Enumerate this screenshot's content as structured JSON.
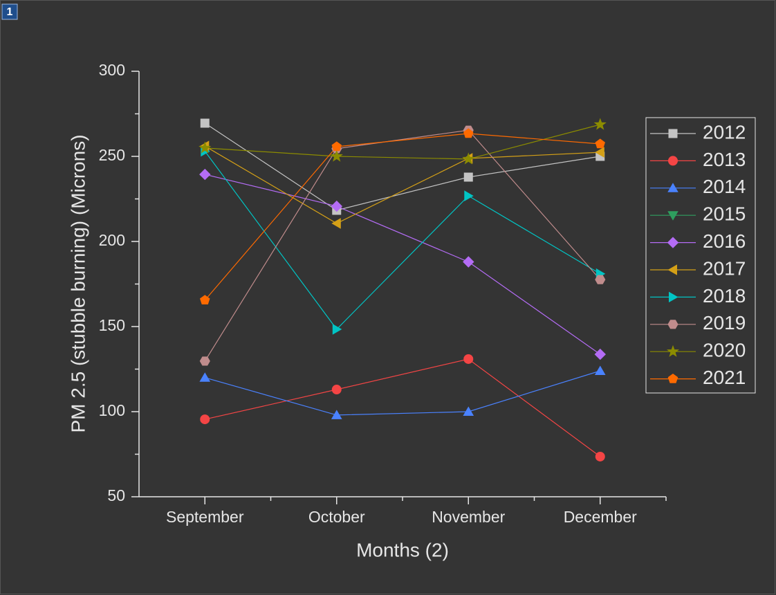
{
  "window_index": "1",
  "chart_data": {
    "type": "line",
    "xlabel": "Months (2)",
    "ylabel": "PM 2.5 (stubble burning) (Microns)",
    "categories": [
      "September",
      "October",
      "November",
      "December"
    ],
    "ylim": [
      50,
      300
    ],
    "yticks": [
      50,
      100,
      150,
      200,
      250,
      300
    ],
    "yminor_ticks": [
      75,
      125,
      175,
      225,
      275
    ],
    "legend": "right",
    "series": [
      {
        "name": "2012",
        "color": "#c4c4c4",
        "marker": "square",
        "values": [
          269.5,
          218.3,
          237.8,
          250
        ]
      },
      {
        "name": "2013",
        "color": "#f44545",
        "marker": "circle",
        "values": [
          95.5,
          113,
          130.9,
          73.6
        ]
      },
      {
        "name": "2014",
        "color": "#4a82ff",
        "marker": "triangle-up",
        "values": [
          120,
          98,
          100,
          124
        ]
      },
      {
        "name": "2015",
        "color": "#2e9e5e",
        "marker": "triangle-down",
        "values": [
          null,
          null,
          null,
          null
        ]
      },
      {
        "name": "2016",
        "color": "#b46cf5",
        "marker": "diamond",
        "values": [
          239.4,
          220.7,
          188,
          133.7
        ]
      },
      {
        "name": "2017",
        "color": "#d4a017",
        "marker": "triangle-left",
        "values": [
          256,
          210.6,
          248.8,
          252.4
        ]
      },
      {
        "name": "2018",
        "color": "#00c4c4",
        "marker": "triangle-right",
        "values": [
          253,
          148.4,
          226.8,
          181
        ]
      },
      {
        "name": "2019",
        "color": "#c08c8c",
        "marker": "hexagon",
        "values": [
          129.7,
          254.5,
          265.4,
          177.6
        ]
      },
      {
        "name": "2020",
        "color": "#8c8c00",
        "marker": "star",
        "values": [
          254.9,
          250,
          248.4,
          268.7
        ]
      },
      {
        "name": "2021",
        "color": "#ff6a00",
        "marker": "pentagon",
        "values": [
          165.5,
          255.7,
          263.4,
          257.3
        ]
      }
    ]
  }
}
